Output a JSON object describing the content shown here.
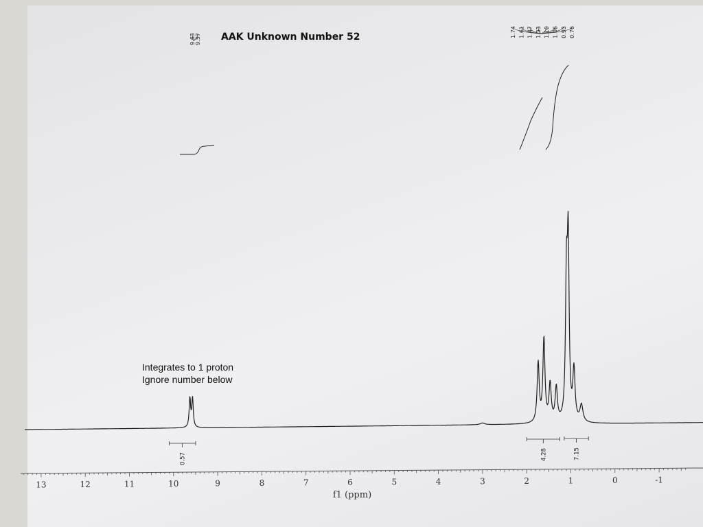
{
  "chart_data": {
    "type": "line",
    "title": "AAK Unknown Number 52",
    "xlabel": "f1 (ppm)",
    "ylabel": "",
    "x_axis": {
      "reversed": true,
      "ticks": [
        13,
        12,
        11,
        10,
        9,
        8,
        7,
        6,
        5,
        4,
        3,
        2,
        1,
        0,
        -1
      ],
      "tick_labels": [
        "13",
        "12",
        "11",
        "10",
        "9",
        "8",
        "7",
        "6",
        "5",
        "4",
        "3",
        "2",
        "1",
        "0",
        "-1"
      ]
    },
    "peak_labels_left": [
      "9.63",
      "9.57"
    ],
    "peak_labels_right": [
      "1.74",
      "1.61",
      "1.47",
      "1.33",
      "1.10",
      "1.06",
      "0.93",
      "0.76"
    ],
    "integrals": [
      {
        "value": "0.57",
        "from": 10.1,
        "to": 9.5
      },
      {
        "value": "4.28",
        "from": 2.0,
        "to": 1.25
      },
      {
        "value": "7.15",
        "from": 1.15,
        "to": 0.6
      }
    ],
    "annotations": [
      "Integrates to 1 proton",
      "Ignore number below"
    ],
    "spectrum_peaks": [
      {
        "ppm": 9.63,
        "intensity": 0.17,
        "width": 0.02
      },
      {
        "ppm": 9.57,
        "intensity": 0.17,
        "width": 0.02
      },
      {
        "ppm": 3.0,
        "intensity": 0.01,
        "width": 0.06
      },
      {
        "ppm": 1.74,
        "intensity": 0.35,
        "width": 0.028
      },
      {
        "ppm": 1.61,
        "intensity": 0.49,
        "width": 0.028
      },
      {
        "ppm": 1.47,
        "intensity": 0.22,
        "width": 0.03
      },
      {
        "ppm": 1.33,
        "intensity": 0.2,
        "width": 0.03
      },
      {
        "ppm": 1.1,
        "intensity": 0.78,
        "width": 0.025
      },
      {
        "ppm": 1.06,
        "intensity": 1.0,
        "width": 0.025
      },
      {
        "ppm": 0.93,
        "intensity": 0.3,
        "width": 0.03
      },
      {
        "ppm": 0.76,
        "intensity": 0.1,
        "width": 0.04
      }
    ],
    "grid": false,
    "legend": "none"
  }
}
